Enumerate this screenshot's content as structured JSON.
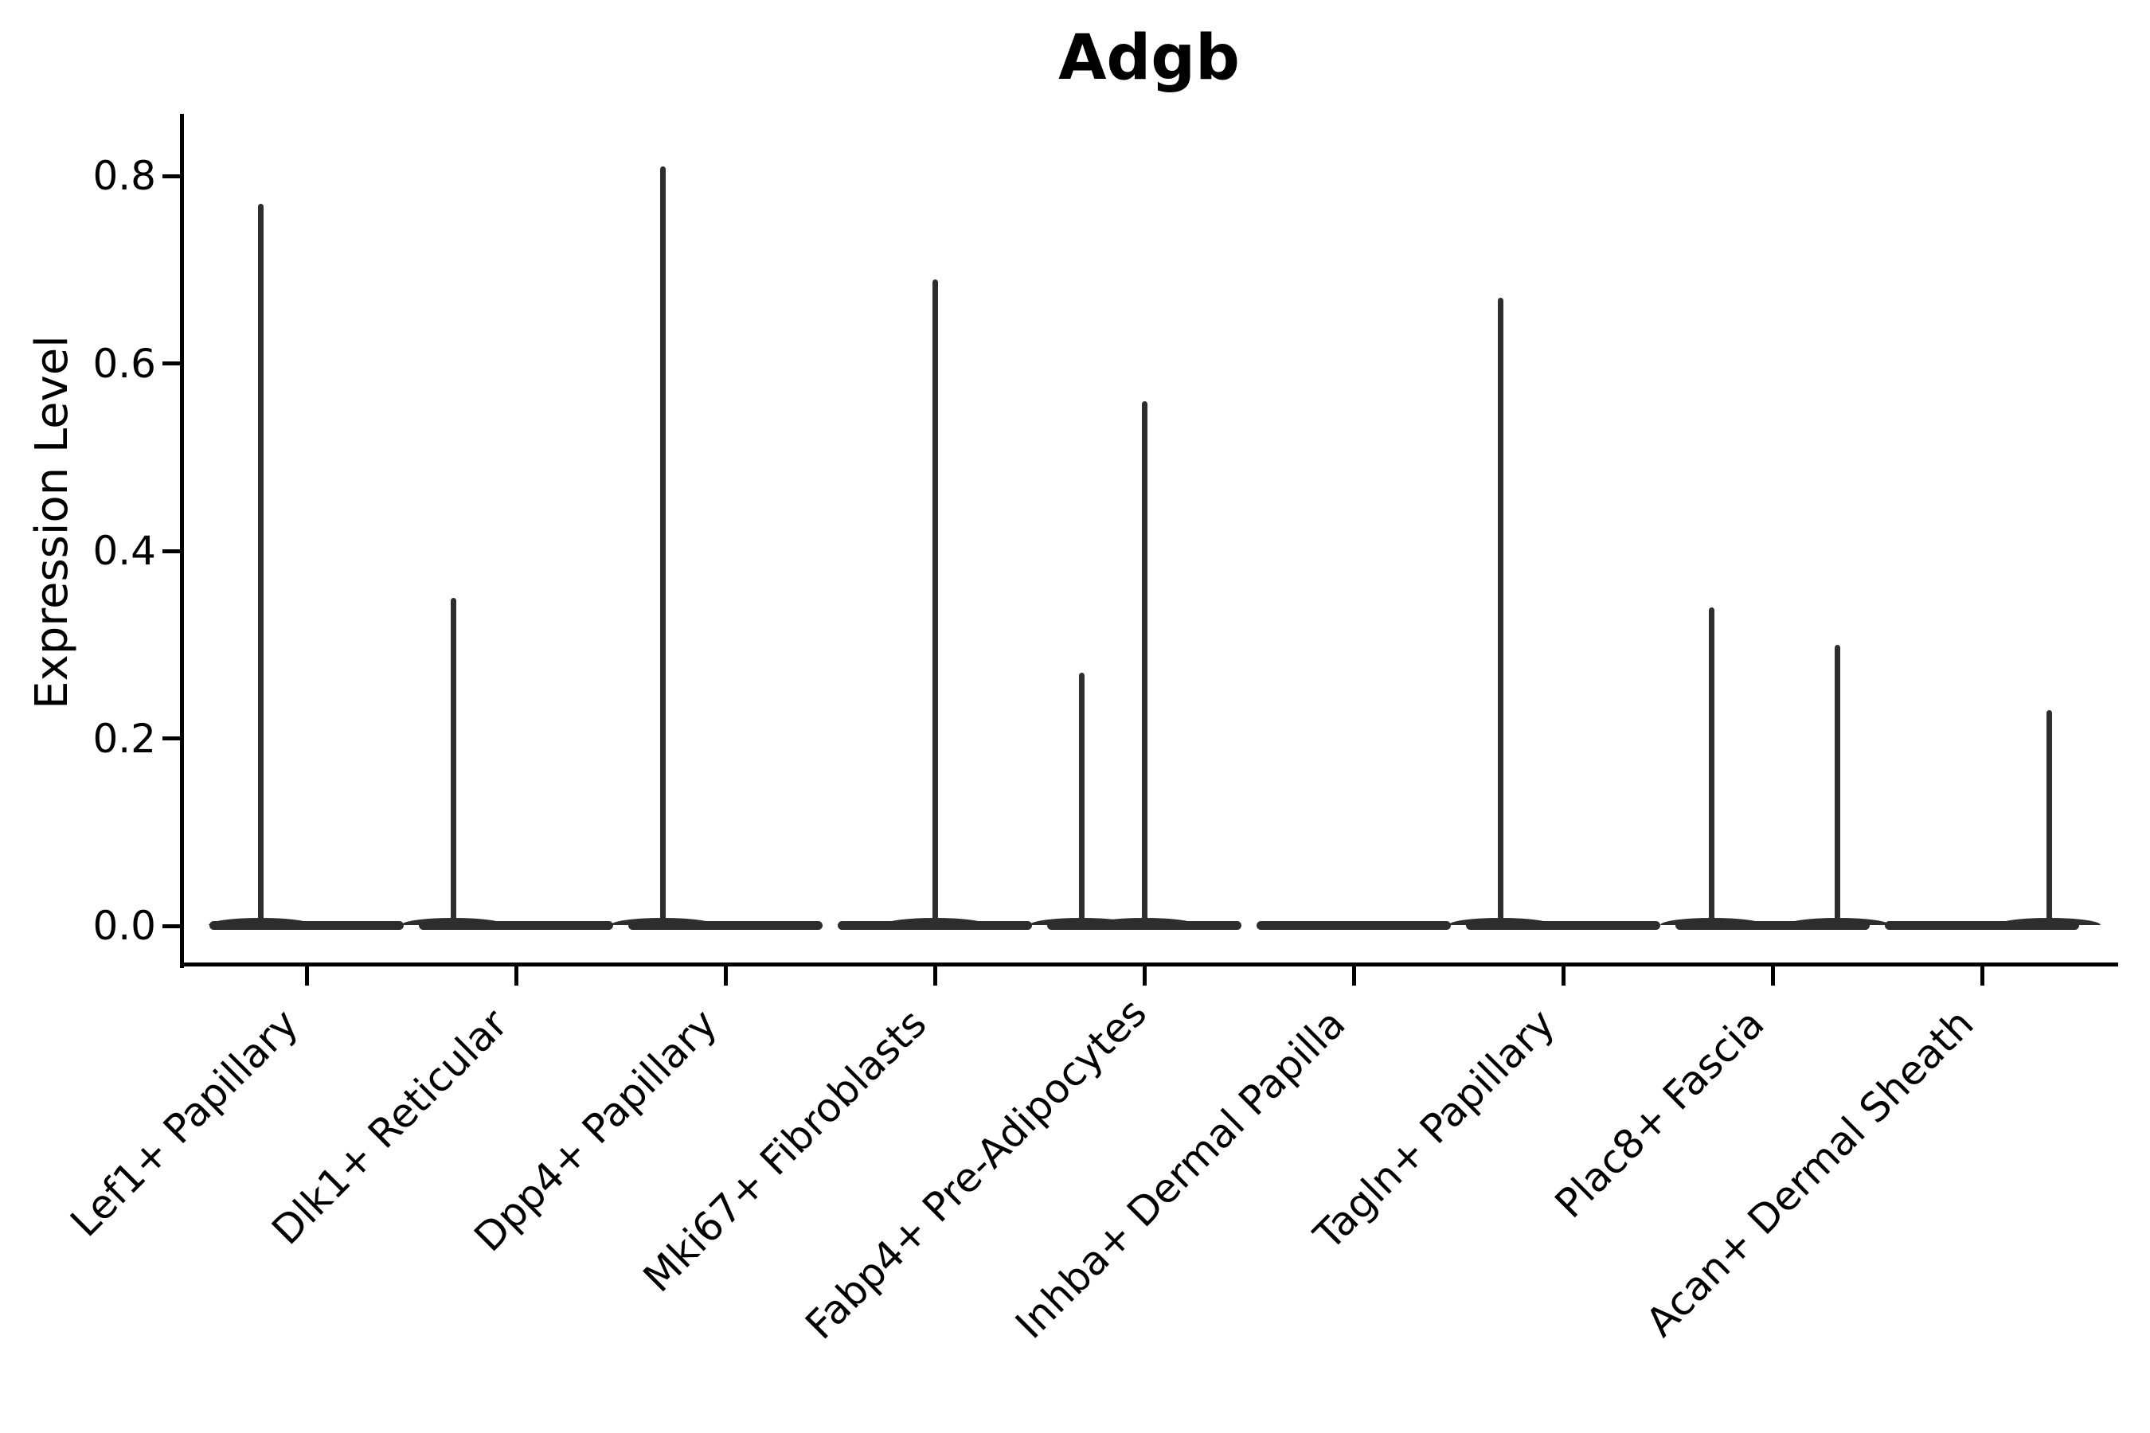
{
  "figure": {
    "title": "Adgb",
    "background_color": "#ffffff"
  },
  "colors": {
    "violin": "#2d2d2d",
    "axis": "#000000",
    "text": "#000000"
  },
  "chart_data": {
    "type": "violin",
    "title": "Adgb",
    "xlabel": "",
    "ylabel": "Expression Level",
    "ylim": [
      0,
      0.87
    ],
    "grid": false,
    "legend": "none",
    "yticks": [
      {
        "value": 0.0,
        "label": "0.0"
      },
      {
        "value": 0.2,
        "label": "0.2"
      },
      {
        "value": 0.4,
        "label": "0.4"
      },
      {
        "value": 0.6,
        "label": "0.6"
      },
      {
        "value": 0.8,
        "label": "0.8"
      }
    ],
    "description": "Seurat-style violin plot of Adgb expression; each cluster shows a wide flat density at 0 with thin spikes up to the maximum expressed values. Spike offset is the horizontal position of each spike as a fraction of category spacing relative to the category center; max is the Expression Level at the spike tip.",
    "categories": [
      {
        "label": "Lef1+ Papillary",
        "base_value": 0.0,
        "spikes": [
          {
            "offset": -0.22,
            "max": 0.77
          }
        ]
      },
      {
        "label": "Dlk1+ Reticular",
        "base_value": 0.0,
        "spikes": [
          {
            "offset": -0.3,
            "max": 0.35
          }
        ]
      },
      {
        "label": "Dpp4+ Papillary",
        "base_value": 0.0,
        "spikes": [
          {
            "offset": -0.3,
            "max": 0.81
          }
        ]
      },
      {
        "label": "Mki67+ Fibroblasts",
        "base_value": 0.0,
        "spikes": [
          {
            "offset": 0.0,
            "max": 0.69
          }
        ]
      },
      {
        "label": "Fabp4+ Pre-Adipocytes",
        "base_value": 0.0,
        "spikes": [
          {
            "offset": -0.3,
            "max": 0.27
          },
          {
            "offset": 0.0,
            "max": 0.56
          }
        ]
      },
      {
        "label": "Inhba+ Dermal Papilla",
        "base_value": 0.0,
        "spikes": []
      },
      {
        "label": "Tagln+ Papillary",
        "base_value": 0.0,
        "spikes": [
          {
            "offset": -0.3,
            "max": 0.67
          }
        ]
      },
      {
        "label": "Plac8+ Fascia",
        "base_value": 0.0,
        "spikes": [
          {
            "offset": -0.29,
            "max": 0.34
          },
          {
            "offset": 0.31,
            "max": 0.3
          }
        ]
      },
      {
        "label": "Acan+ Dermal Sheath",
        "base_value": 0.0,
        "spikes": [
          {
            "offset": 0.32,
            "max": 0.23
          }
        ]
      }
    ]
  }
}
